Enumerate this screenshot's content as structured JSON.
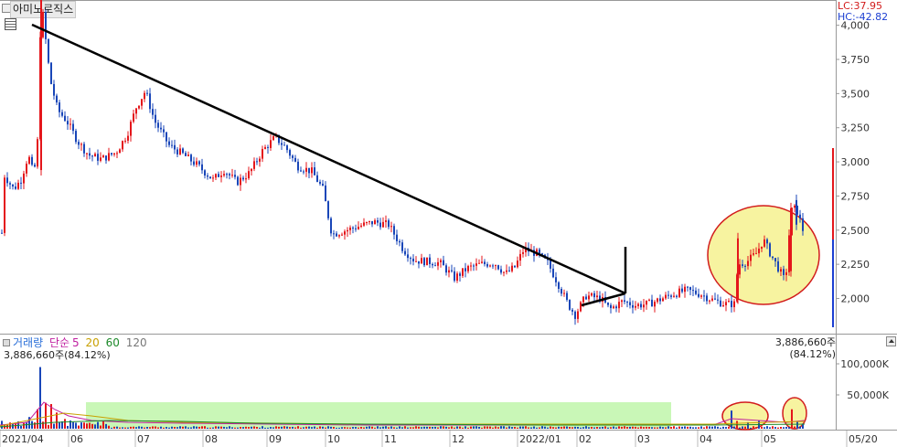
{
  "stock_name": "아미노로직스",
  "price_panel": {
    "lc_label": "LC:37.95",
    "hc_label": "HC:-42.82",
    "y_ticks": [
      "4,250",
      "4,000",
      "3,750",
      "3,500",
      "3,250",
      "3,000",
      "2,750",
      "2,500",
      "2,250",
      "2,000"
    ]
  },
  "volume_panel": {
    "legend": {
      "volume": "거래량",
      "ma_label": "단순",
      "ma5": "5",
      "ma20": "20",
      "ma60": "60",
      "ma120": "120"
    },
    "current_value": "3,886,660주(84.12%)",
    "current_value_right": "3,886,660주(84.12%)",
    "y_ticks": [
      "100,000K",
      "50,000K"
    ]
  },
  "x_axis": {
    "labels": [
      "2021/04",
      "06",
      "07",
      "08",
      "09",
      "10",
      "11",
      "12",
      "2022/01",
      "02",
      "03",
      "04",
      "05",
      "05/20"
    ]
  },
  "colors": {
    "up": "#e4161b",
    "down": "#1946b8",
    "trend": "#000000",
    "highlight_fill": "#f7f3a0",
    "highlight_stroke": "#d21c1c",
    "volume_band": "#c9f7b7",
    "lc": "#d21c1c",
    "hc": "#1c3fd2"
  },
  "icons": {
    "menu": "square-icon",
    "chart_type": "grid-icon",
    "volume_menu": "square-icon",
    "volume_expand": "triangle-icon"
  },
  "chart_data": [
    {
      "type": "candlestick",
      "x_range": [
        "2021/04",
        "2022/05/20"
      ],
      "ylim": [
        1850,
        4300
      ],
      "y_ticks": [
        2000,
        2250,
        2500,
        2750,
        3000,
        3250,
        3500,
        3750,
        4000,
        4250
      ],
      "highs": [
        {
          "date": "2021/04",
          "value": 4320
        },
        {
          "date": "2021/07",
          "value": 3610
        },
        {
          "date": "2021/09",
          "value": 3280
        },
        {
          "date": "2021/11",
          "value": 2680
        },
        {
          "date": "2022/01",
          "value": 2400
        },
        {
          "date": "2022/05",
          "value": 2760
        }
      ],
      "lows": [
        {
          "date": "2021/04",
          "value": 2700
        },
        {
          "date": "2022/01",
          "value": 1840
        },
        {
          "date": "2022/04",
          "value": 1900
        }
      ],
      "close_approx": 2480,
      "annotations": [
        "downtrend line",
        "breakout marker",
        "highlight circle"
      ]
    },
    {
      "type": "bar",
      "series": [
        {
          "values_approx_K": [
            15000,
            90000,
            40000,
            8000,
            5000,
            6000,
            4000,
            4000,
            3000,
            3000,
            2500,
            2000,
            2500,
            28000,
            30000,
            3886.66
          ]
        }
      ],
      "ylim": [
        0,
        140000
      ],
      "y_ticks": [
        50000,
        100000
      ]
    }
  ]
}
